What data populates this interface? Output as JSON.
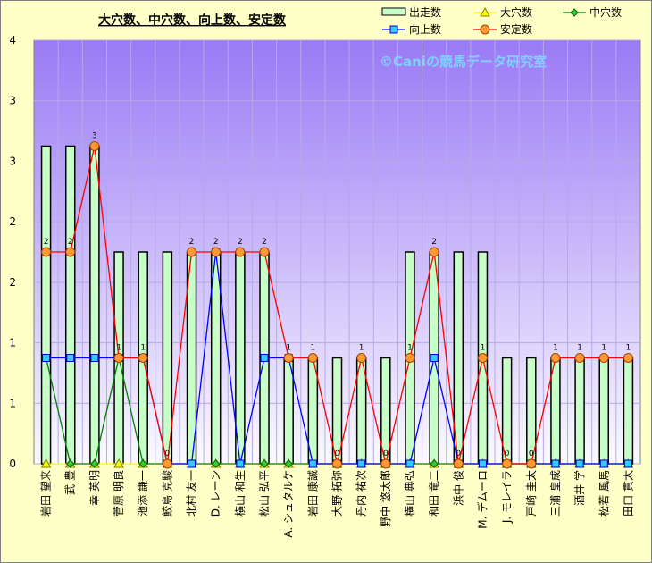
{
  "chart_data": {
    "type": "bar",
    "title": "大穴数、中穴数、向上数、安定数",
    "watermark": "©Caniの競馬データ研究室",
    "ylim": [
      0,
      4
    ],
    "ytick_labels": [
      "0",
      "1",
      "1",
      "2",
      "2",
      "3",
      "3",
      "4"
    ],
    "grid": true,
    "legend_position": "top-right",
    "categories": [
      "岩田 望来",
      "武 豊",
      "幸 英明",
      "菅原 明良",
      "池添 謙一",
      "鮫島 克駿",
      "北村 友一",
      "D. レーン",
      "横山 和生",
      "松山 弘平",
      "A. シュタルケ",
      "岩田 康誠",
      "大野 拓弥",
      "丹内 祐次",
      "野中 悠太郎",
      "横山 典弘",
      "和田 竜二",
      "浜中 俊",
      "M. デムーロ",
      "J. モレイラ",
      "戸崎 圭太",
      "三浦 皇成",
      "酒井 学",
      "松若 風馬",
      "田口 貫太"
    ],
    "series": [
      {
        "name": "出走数",
        "kind": "bar",
        "color": "#c8ffc8",
        "values": [
          3,
          3,
          3,
          2,
          2,
          2,
          2,
          2,
          2,
          2,
          1,
          1,
          1,
          1,
          1,
          2,
          2,
          2,
          2,
          1,
          1,
          1,
          1,
          1,
          1
        ]
      },
      {
        "name": "大穴数",
        "kind": "line",
        "color": "#ffff00",
        "values": [
          0,
          0,
          0,
          0,
          0,
          0,
          0,
          0,
          0,
          0,
          0,
          0,
          0,
          0,
          0,
          0,
          0,
          0,
          0,
          0,
          0,
          0,
          0,
          0,
          0
        ]
      },
      {
        "name": "中穴数",
        "kind": "line",
        "color": "#008000",
        "values": [
          1,
          0,
          0,
          1,
          0,
          0,
          0,
          0,
          0,
          0,
          0,
          0,
          0,
          0,
          0,
          0,
          0,
          0,
          0,
          0,
          0,
          0,
          0,
          0,
          0
        ]
      },
      {
        "name": "向上数",
        "kind": "line",
        "color": "#0000ff",
        "values": [
          1,
          1,
          1,
          1,
          1,
          0,
          0,
          2,
          0,
          1,
          1,
          0,
          0,
          0,
          0,
          0,
          1,
          0,
          0,
          0,
          0,
          0,
          0,
          0,
          0
        ]
      },
      {
        "name": "安定数",
        "kind": "line",
        "color": "#ff0000",
        "values": [
          2,
          2,
          3,
          1,
          1,
          0,
          2,
          2,
          2,
          2,
          1,
          1,
          0,
          1,
          0,
          1,
          2,
          0,
          1,
          0,
          0,
          1,
          1,
          1,
          1
        ]
      }
    ],
    "data_labels": [
      "2",
      "2",
      "3",
      "1",
      "1",
      "0",
      "2",
      "2",
      "2",
      "2",
      "1",
      "1",
      "0",
      "1",
      "0",
      "1",
      "2",
      "0",
      "1",
      "0",
      "0",
      "1",
      "1",
      "1",
      "1"
    ]
  }
}
